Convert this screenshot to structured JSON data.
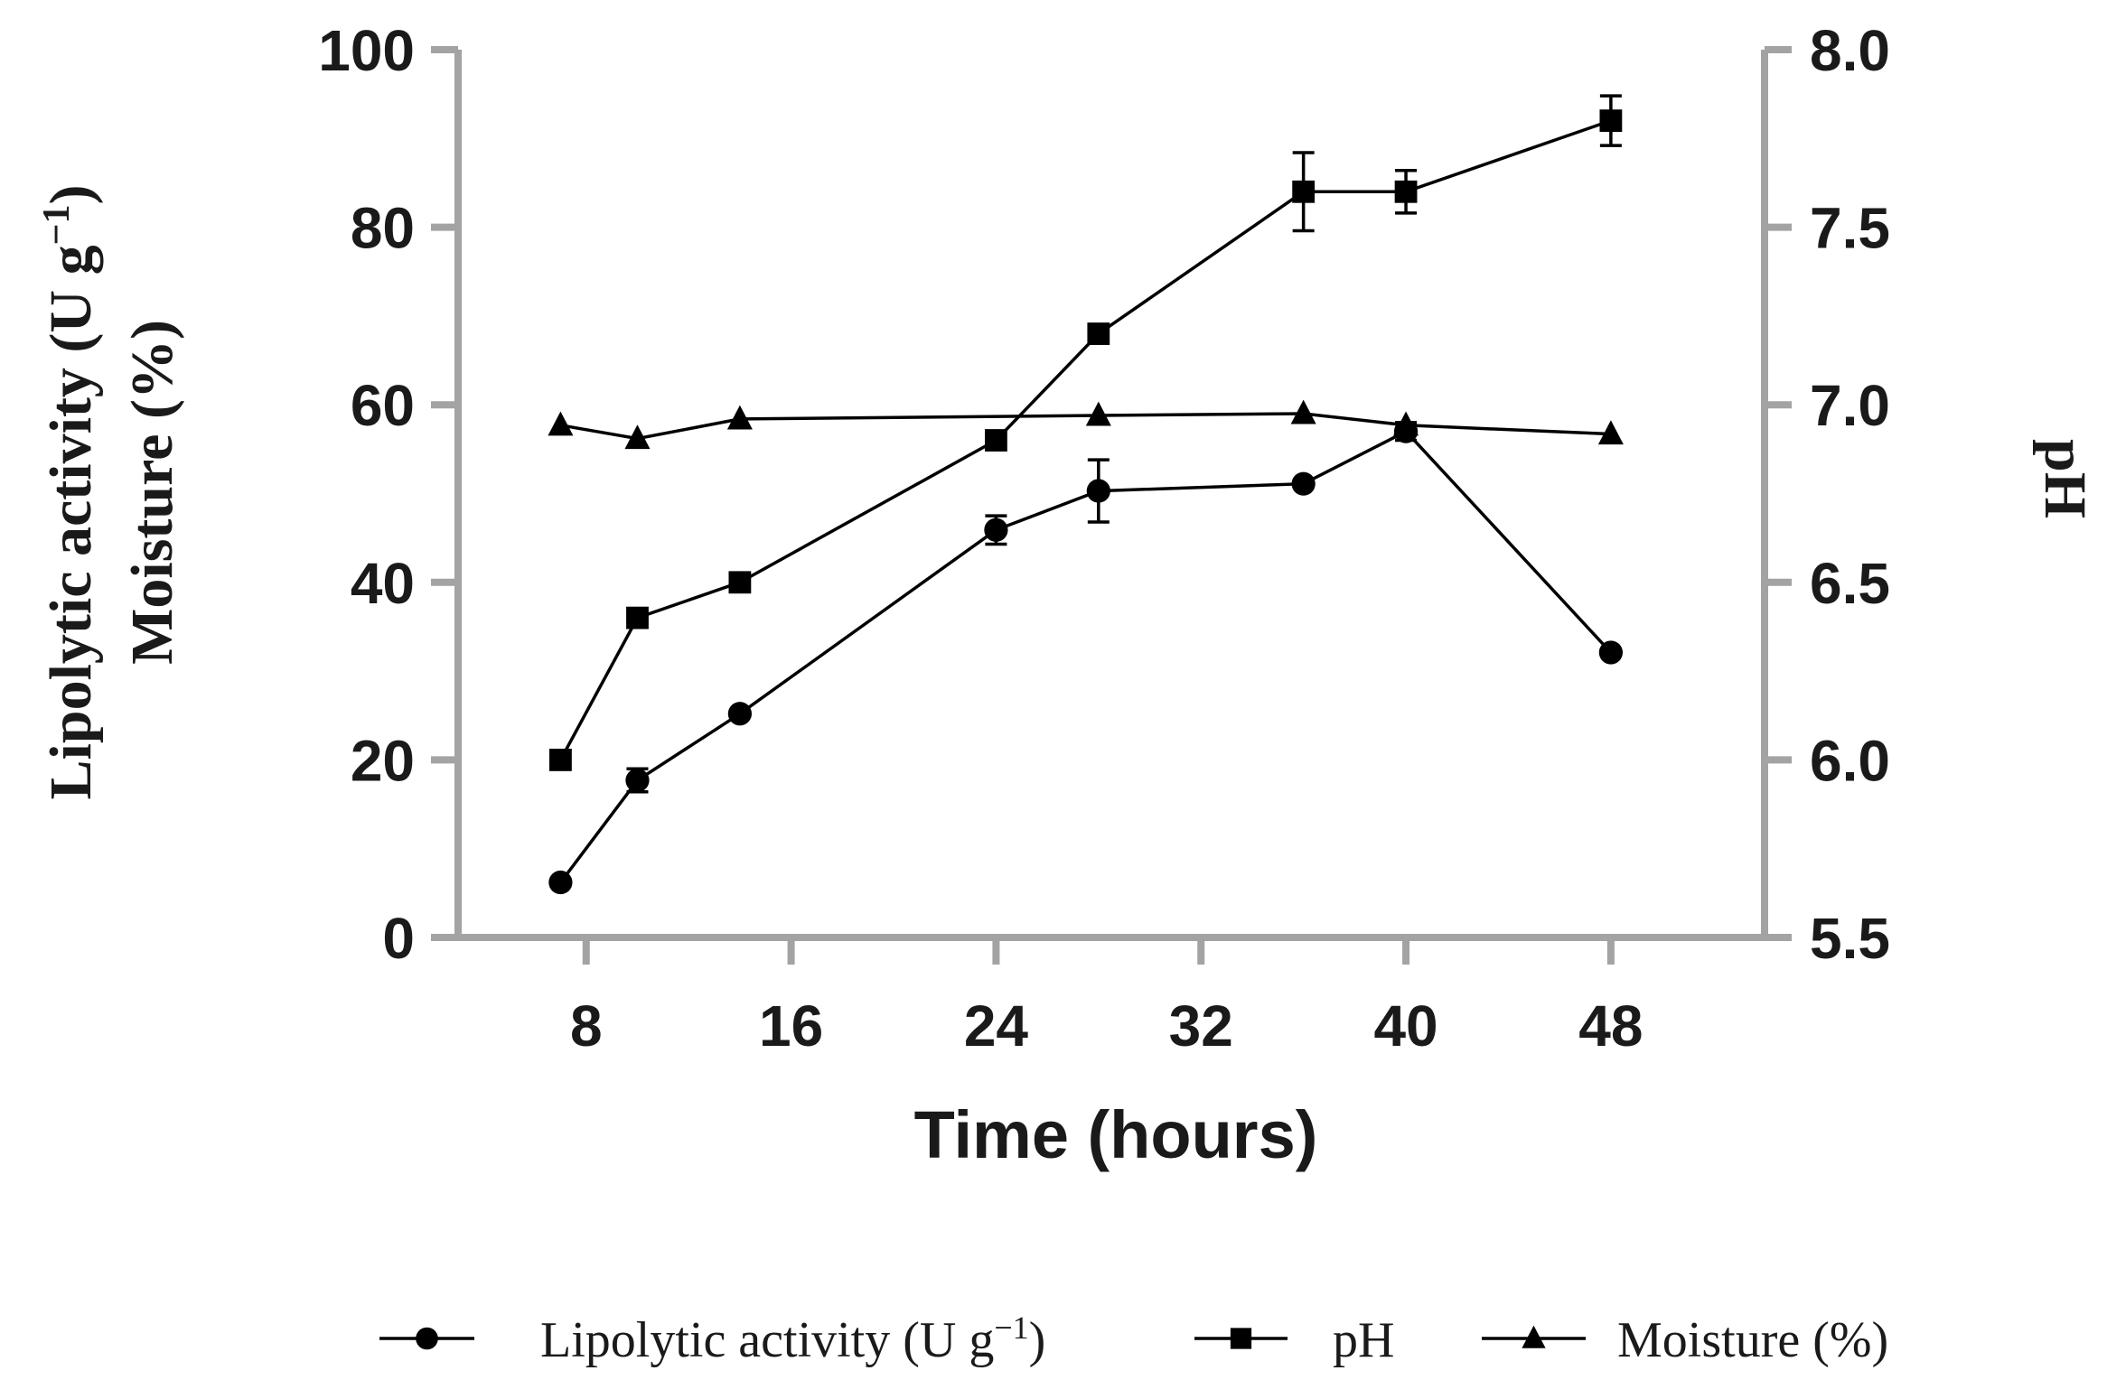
{
  "chart_data": {
    "type": "line",
    "x_axis": {
      "title": "Time (hours)",
      "range": [
        3,
        54
      ],
      "ticks": [
        8,
        16,
        24,
        32,
        40,
        48
      ]
    },
    "y_left": {
      "title_line1": "Lipolytic activity (U g",
      "title_sup": "−1",
      "title_line1_end": ")",
      "title_line2": "Moisture (%)",
      "range": [
        0,
        100
      ],
      "ticks": [
        0,
        20,
        40,
        60,
        80,
        100
      ],
      "tick_labels": [
        "0",
        "20",
        "40",
        "60",
        "80",
        "100"
      ]
    },
    "y_right": {
      "title": "pH",
      "range": [
        5.5,
        8.0
      ],
      "ticks": [
        5.5,
        6.0,
        6.5,
        7.0,
        7.5,
        8.0
      ],
      "tick_labels": [
        "5.5",
        "6.0",
        "6.5",
        "7.0",
        "7.5",
        "8.0"
      ]
    },
    "series": [
      {
        "name": "Lipolytic activity (U g⁻¹)",
        "legend_main": "Lipolytic activity (U g",
        "legend_sup": "−1",
        "legend_end": ")",
        "marker": "circle",
        "axis": "left",
        "x": [
          7,
          10,
          14,
          24,
          28,
          36,
          40,
          48
        ],
        "y": [
          6.2,
          17.7,
          25.2,
          45.9,
          50.3,
          51.1,
          57.0,
          32.1
        ],
        "err": [
          0,
          1.3,
          0,
          1.6,
          3.5,
          0,
          1.0,
          0
        ]
      },
      {
        "name": "pH",
        "legend_main": "pH",
        "legend_sup": "",
        "legend_end": "",
        "marker": "square",
        "axis": "right",
        "x": [
          7,
          10,
          14,
          24,
          28,
          36,
          40,
          48
        ],
        "y": [
          6.0,
          6.4,
          6.5,
          6.9,
          7.2,
          7.6,
          7.6,
          7.8
        ],
        "err": [
          0,
          0,
          0,
          0,
          0,
          0.11,
          0.06,
          0.07
        ]
      },
      {
        "name": "Moisture (%)",
        "legend_main": "Moisture (%)",
        "legend_sup": "",
        "legend_end": "",
        "marker": "triangle",
        "axis": "left",
        "x": [
          7,
          10,
          14,
          28,
          36,
          40,
          48
        ],
        "y": [
          57.7,
          56.2,
          58.4,
          58.8,
          59.0,
          57.7,
          56.7
        ],
        "err": [
          0,
          0,
          0,
          0,
          0,
          0,
          0
        ]
      }
    ],
    "grid": false,
    "legend_position": "bottom"
  }
}
